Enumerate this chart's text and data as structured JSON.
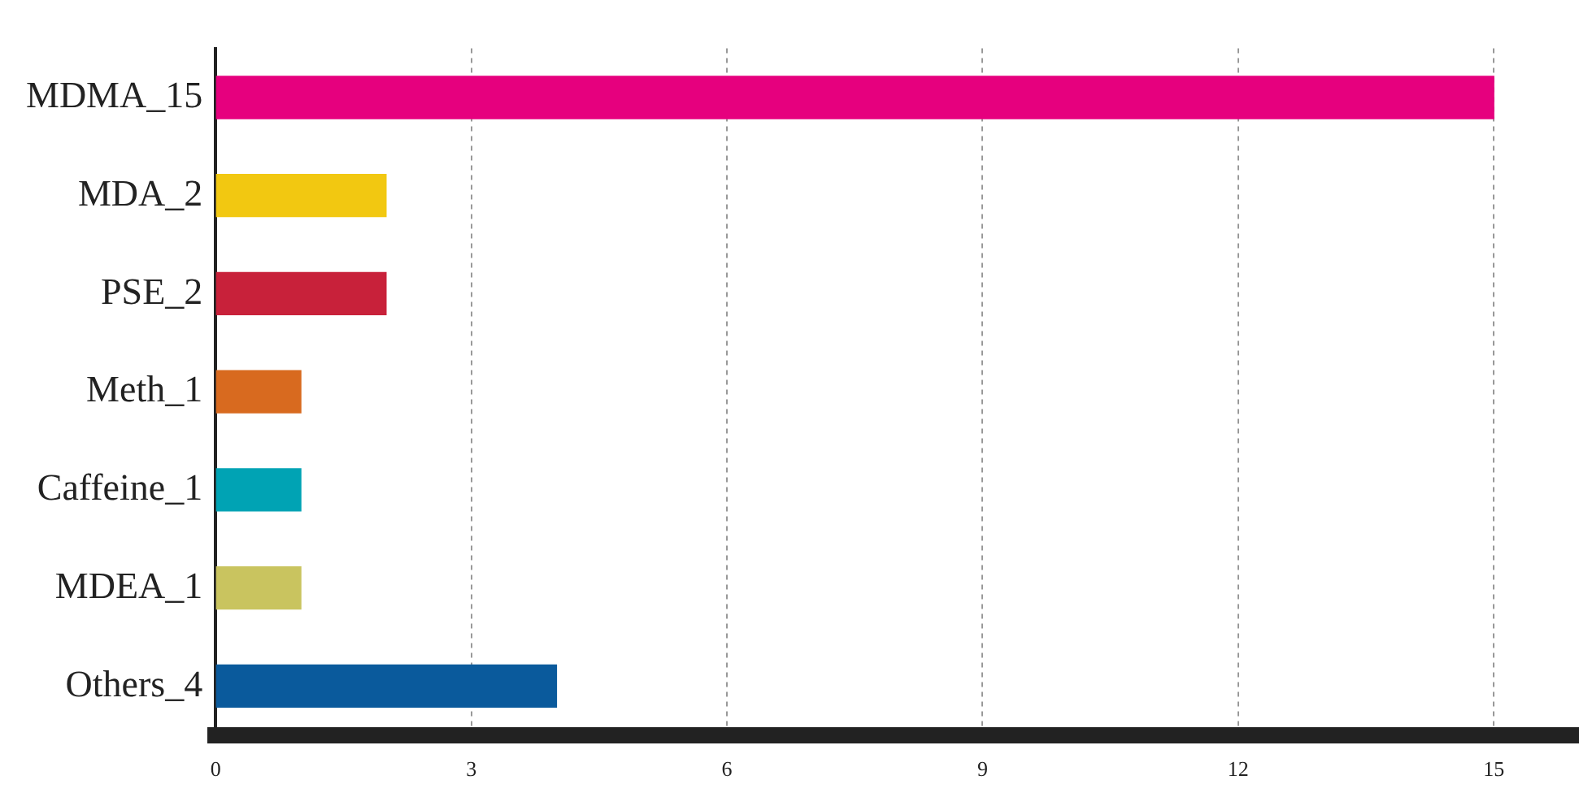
{
  "chart_data": {
    "type": "bar",
    "orientation": "horizontal",
    "categories": [
      "MDMA_15",
      "MDA_2",
      "PSE_2",
      "Meth_1",
      "Caffeine_1",
      "MDEA_1",
      "Others_4"
    ],
    "values": [
      15,
      2,
      2,
      1,
      1,
      1,
      4
    ],
    "colors": [
      "#e6007e",
      "#f2c811",
      "#c8213a",
      "#d86a1f",
      "#00a3b4",
      "#c9c45f",
      "#0a5a9c"
    ],
    "xlim": [
      0,
      16
    ],
    "xticks": [
      0,
      3,
      6,
      9,
      12,
      15
    ],
    "grid": "x",
    "legend": false
  }
}
